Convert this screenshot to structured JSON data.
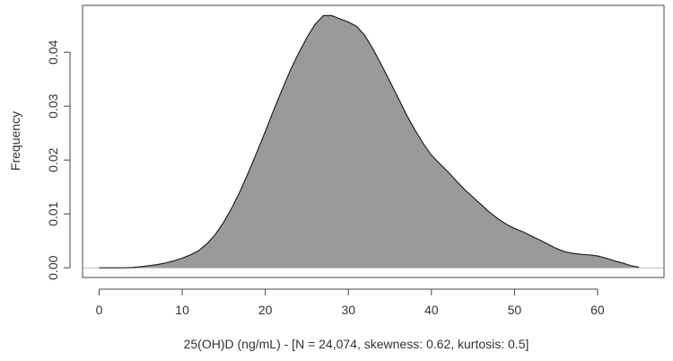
{
  "chart_data": {
    "type": "area",
    "title": "",
    "xlabel": "25(OH)D (ng/mL) - [N = 24,074, skewness: 0.62, kurtosis: 0.5]",
    "ylabel": "Frequency",
    "xlim": [
      -2,
      68
    ],
    "ylim": [
      -0.0018,
      0.0487
    ],
    "x_ticks": [
      0,
      10,
      20,
      30,
      40,
      50,
      60
    ],
    "x_tick_labels": [
      "0",
      "10",
      "20",
      "30",
      "40",
      "50",
      "60"
    ],
    "y_ticks": [
      0.0,
      0.01,
      0.02,
      0.03,
      0.04
    ],
    "y_tick_labels": [
      "0.00",
      "0.01",
      "0.02",
      "0.03",
      "0.04"
    ],
    "grid": false,
    "baseline": 0,
    "fill_color": "#9a9a9a",
    "line_color": "#222222",
    "baseline_color": "#bbbbbb",
    "series": [
      {
        "x": [
          0,
          3,
          4,
          5,
          6,
          7,
          8,
          9,
          10,
          11,
          12,
          13,
          14,
          15,
          16,
          17,
          18,
          19,
          20,
          21,
          22,
          23,
          24,
          25,
          26,
          27,
          28,
          29,
          30,
          31,
          32,
          33,
          34,
          35,
          36,
          37,
          38,
          39,
          40,
          41,
          42,
          43,
          44,
          45,
          46,
          47,
          48,
          49,
          50,
          51,
          52,
          53,
          54,
          55,
          56,
          57,
          58,
          59,
          60,
          61,
          62,
          63,
          64,
          65
        ],
        "y": [
          0.0,
          0.0,
          5e-05,
          0.0002,
          0.0004,
          0.0006,
          0.0009,
          0.0013,
          0.0018,
          0.0024,
          0.0032,
          0.0045,
          0.0062,
          0.0085,
          0.0112,
          0.0143,
          0.0178,
          0.0215,
          0.0253,
          0.0292,
          0.033,
          0.0366,
          0.0398,
          0.0427,
          0.0452,
          0.0468,
          0.0468,
          0.0462,
          0.0456,
          0.0448,
          0.0431,
          0.0405,
          0.0376,
          0.0346,
          0.0315,
          0.0284,
          0.0256,
          0.0231,
          0.0209,
          0.0193,
          0.0178,
          0.0161,
          0.0145,
          0.0131,
          0.0117,
          0.0103,
          0.0091,
          0.0081,
          0.0073,
          0.0067,
          0.0059,
          0.0052,
          0.0044,
          0.0036,
          0.003,
          0.0027,
          0.0025,
          0.0024,
          0.0022,
          0.0018,
          0.0013,
          0.0009,
          0.0004,
          0.0001
        ]
      }
    ]
  }
}
